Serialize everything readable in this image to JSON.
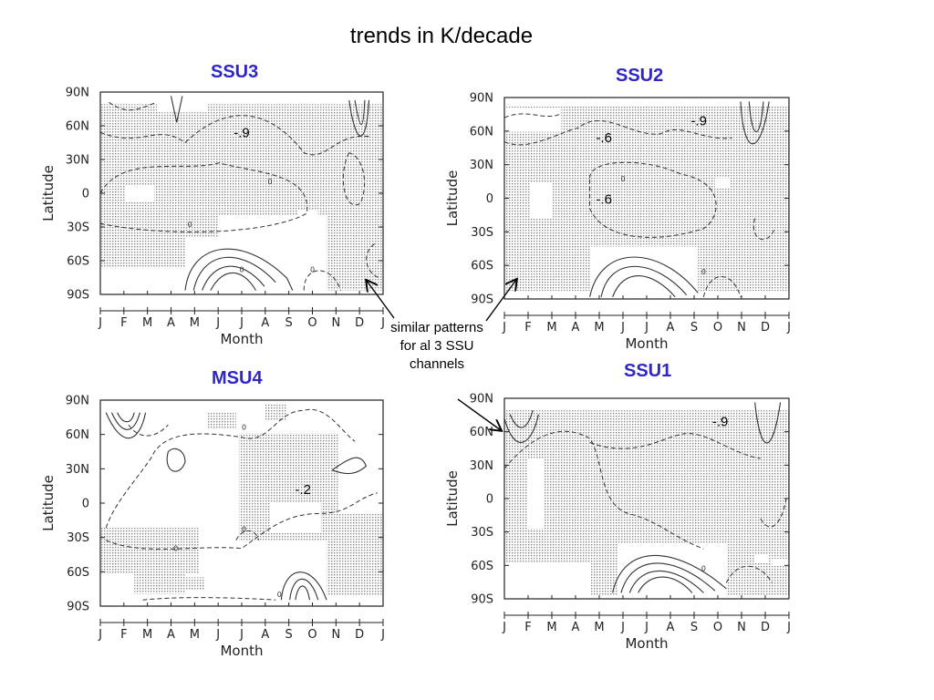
{
  "title": "trends in K/decade",
  "note": [
    "similar patterns",
    "for al 3 SSU",
    "channels"
  ],
  "colors": {
    "label": "#2e26c8",
    "stipple": "#9a9a9a",
    "contour": "#333333"
  },
  "chart_data": [
    {
      "type": "contour",
      "title": "SSU3",
      "xlabel": "Month",
      "ylabel": "Latitude",
      "x_ticks": [
        "J",
        "F",
        "M",
        "A",
        "M",
        "J",
        "J",
        "A",
        "S",
        "O",
        "N",
        "D",
        "J"
      ],
      "y_ticks": [
        "90N",
        "60N",
        "30N",
        "0",
        "30S",
        "60S",
        "90S"
      ],
      "ylim": [
        -90,
        90
      ],
      "annotations": [
        {
          "text": "-.9",
          "month": 6.0,
          "lat": 50
        }
      ],
      "contour_labels": [
        {
          "text": "0",
          "month": 7.2,
          "lat": 8
        },
        {
          "text": "0",
          "month": 3.8,
          "lat": -30
        },
        {
          "text": "0",
          "month": 6.0,
          "lat": -70
        },
        {
          "text": "0",
          "month": 9.0,
          "lat": -70
        }
      ]
    },
    {
      "type": "contour",
      "title": "SSU2",
      "xlabel": "Month",
      "ylabel": "Latitude",
      "x_ticks": [
        "J",
        "F",
        "M",
        "A",
        "M",
        "J",
        "J",
        "A",
        "S",
        "O",
        "N",
        "D",
        "J"
      ],
      "y_ticks": [
        "90N",
        "60N",
        "30N",
        "0",
        "30S",
        "60S",
        "90S"
      ],
      "ylim": [
        -90,
        90
      ],
      "annotations": [
        {
          "text": "-.9",
          "month": 8.2,
          "lat": 65
        },
        {
          "text": "-.6",
          "month": 4.2,
          "lat": 50
        },
        {
          "text": "-.6",
          "month": 4.2,
          "lat": -5
        }
      ],
      "contour_labels": [
        {
          "text": "0",
          "month": 5.0,
          "lat": 15
        },
        {
          "text": "0",
          "month": 8.4,
          "lat": -68
        }
      ]
    },
    {
      "type": "contour",
      "title": "MSU4",
      "xlabel": "Month",
      "ylabel": "Latitude",
      "x_ticks": [
        "J",
        "F",
        "M",
        "A",
        "M",
        "J",
        "J",
        "A",
        "S",
        "O",
        "N",
        "D",
        "J"
      ],
      "y_ticks": [
        "90N",
        "60N",
        "30N",
        "0",
        "30S",
        "60S",
        "90S"
      ],
      "ylim": [
        -90,
        90
      ],
      "annotations": [
        {
          "text": "-.2",
          "month": 8.6,
          "lat": 8
        }
      ],
      "contour_labels": [
        {
          "text": "0",
          "month": 6.1,
          "lat": 64
        },
        {
          "text": "0",
          "month": 6.1,
          "lat": -25
        },
        {
          "text": "0",
          "month": 3.2,
          "lat": -42
        },
        {
          "text": "0",
          "month": 7.6,
          "lat": -82
        }
      ]
    },
    {
      "type": "contour",
      "title": "SSU1",
      "xlabel": "Month",
      "ylabel": "Latitude",
      "x_ticks": [
        "J",
        "F",
        "M",
        "A",
        "M",
        "J",
        "J",
        "A",
        "S",
        "O",
        "N",
        "D",
        "J"
      ],
      "y_ticks": [
        "90N",
        "60N",
        "30N",
        "0",
        "30S",
        "60S",
        "90S"
      ],
      "ylim": [
        -90,
        90
      ],
      "annotations": [
        {
          "text": "-.9",
          "month": 9.1,
          "lat": 65
        }
      ],
      "contour_labels": [
        {
          "text": "0",
          "month": 8.4,
          "lat": -65
        }
      ]
    }
  ]
}
